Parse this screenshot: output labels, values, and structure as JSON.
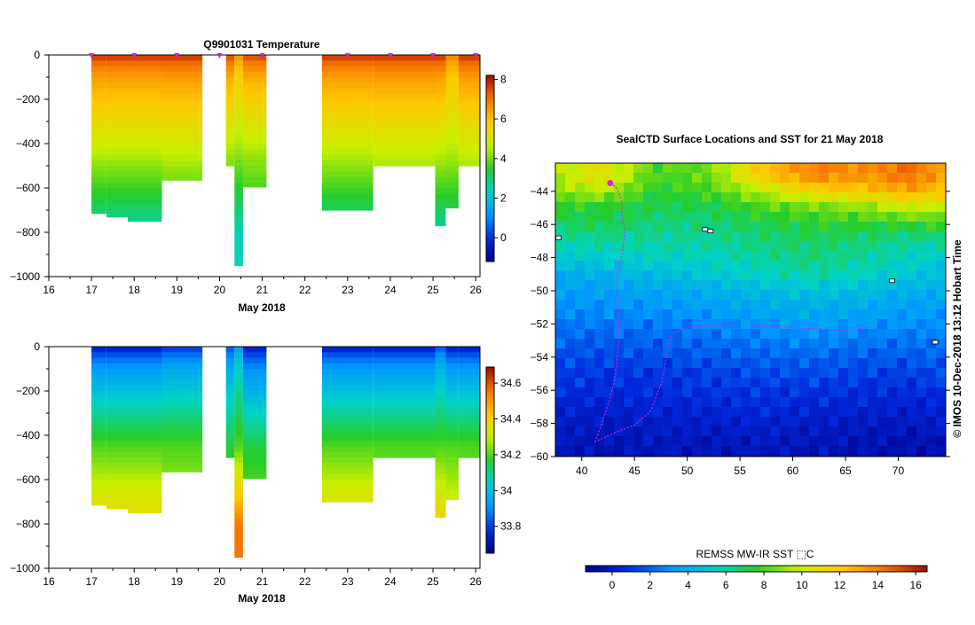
{
  "chart_data": [
    {
      "type": "heatmap",
      "title": "Q9901031  Temperature",
      "xlabel": "May 2018",
      "xlim": [
        16,
        26.1
      ],
      "ylim": [
        -1000,
        0
      ],
      "xticks": [
        16,
        17,
        18,
        19,
        20,
        21,
        22,
        23,
        24,
        25,
        26
      ],
      "yticks": [
        0,
        -200,
        -400,
        -600,
        -800,
        -1000
      ],
      "colorbar": {
        "min": -1.2,
        "max": 8.2,
        "ticks": [
          0,
          2,
          4,
          6,
          8
        ]
      },
      "surface_markers": [
        17.0,
        18.0,
        19.0,
        20.0,
        21.0,
        23.0,
        24.0,
        25.0,
        26.0
      ],
      "profiles": [
        {
          "x0": 17.0,
          "x1": 17.35,
          "depth": -715,
          "top": 8.0,
          "mid": 4.5,
          "bot": 2.5
        },
        {
          "x0": 17.35,
          "x1": 17.85,
          "depth": -730,
          "top": 8.0,
          "mid": 4.5,
          "bot": 2.5
        },
        {
          "x0": 17.85,
          "x1": 18.65,
          "depth": -750,
          "top": 8.0,
          "mid": 4.5,
          "bot": 2.5
        },
        {
          "x0": 18.65,
          "x1": 19.6,
          "depth": -565,
          "top": 8.0,
          "mid": 4.6,
          "bot": 2.9
        },
        {
          "x0": 20.15,
          "x1": 20.35,
          "depth": -500,
          "top": 7.8,
          "mid": 4.3,
          "bot": 3.0
        },
        {
          "x0": 20.35,
          "x1": 20.55,
          "depth": -950,
          "top": 6.8,
          "mid": 4.2,
          "bot": 2.5
        },
        {
          "x0": 20.55,
          "x1": 21.1,
          "depth": -595,
          "top": 7.8,
          "mid": 4.3,
          "bot": 3.0
        },
        {
          "x0": 22.4,
          "x1": 23.6,
          "depth": -700,
          "top": 8.0,
          "mid": 4.5,
          "bot": 2.6
        },
        {
          "x0": 23.6,
          "x1": 24.25,
          "depth": -500,
          "top": 8.0,
          "mid": 4.6,
          "bot": 3.1
        },
        {
          "x0": 24.25,
          "x1": 25.05,
          "depth": -500,
          "top": 8.0,
          "mid": 4.6,
          "bot": 3.1
        },
        {
          "x0": 25.05,
          "x1": 25.3,
          "depth": -770,
          "top": 8.0,
          "mid": 4.5,
          "bot": 2.6
        },
        {
          "x0": 25.3,
          "x1": 25.6,
          "depth": -690,
          "top": 7.0,
          "mid": 4.4,
          "bot": 2.7
        },
        {
          "x0": 25.6,
          "x1": 26.1,
          "depth": -500,
          "top": 8.0,
          "mid": 4.6,
          "bot": 3.1
        }
      ]
    },
    {
      "type": "heatmap",
      "title": "",
      "xlabel": "May 2018",
      "xlim": [
        16,
        26.1
      ],
      "ylim": [
        -1000,
        0
      ],
      "xticks": [
        16,
        17,
        18,
        19,
        20,
        21,
        22,
        23,
        24,
        25,
        26
      ],
      "yticks": [
        0,
        -200,
        -400,
        -600,
        -800,
        -1000
      ],
      "colorbar": {
        "min": 33.65,
        "max": 34.69,
        "ticks": [
          33.8,
          34,
          34.2,
          34.4,
          34.6
        ]
      },
      "profiles": [
        {
          "x0": 17.0,
          "x1": 17.35,
          "depth": -715,
          "top": 33.7,
          "mid": 34.2,
          "bot": 34.4
        },
        {
          "x0": 17.35,
          "x1": 17.85,
          "depth": -730,
          "top": 33.7,
          "mid": 34.2,
          "bot": 34.4
        },
        {
          "x0": 17.85,
          "x1": 18.65,
          "depth": -750,
          "top": 33.7,
          "mid": 34.2,
          "bot": 34.4
        },
        {
          "x0": 18.65,
          "x1": 19.6,
          "depth": -565,
          "top": 33.75,
          "mid": 34.2,
          "bot": 34.3
        },
        {
          "x0": 20.15,
          "x1": 20.35,
          "depth": -500,
          "top": 33.8,
          "mid": 34.15,
          "bot": 34.25
        },
        {
          "x0": 20.35,
          "x1": 20.55,
          "depth": -950,
          "top": 33.9,
          "mid": 34.2,
          "bot": 34.55
        },
        {
          "x0": 20.55,
          "x1": 21.1,
          "depth": -595,
          "top": 33.7,
          "mid": 34.15,
          "bot": 34.25
        },
        {
          "x0": 22.4,
          "x1": 23.6,
          "depth": -700,
          "top": 33.7,
          "mid": 34.2,
          "bot": 34.4
        },
        {
          "x0": 23.6,
          "x1": 24.25,
          "depth": -500,
          "top": 33.7,
          "mid": 34.2,
          "bot": 34.25
        },
        {
          "x0": 24.25,
          "x1": 25.05,
          "depth": -500,
          "top": 33.7,
          "mid": 34.2,
          "bot": 34.25
        },
        {
          "x0": 25.05,
          "x1": 25.3,
          "depth": -770,
          "top": 33.8,
          "mid": 34.2,
          "bot": 34.4
        },
        {
          "x0": 25.3,
          "x1": 25.6,
          "depth": -690,
          "top": 33.7,
          "mid": 34.2,
          "bot": 34.35
        },
        {
          "x0": 25.6,
          "x1": 26.1,
          "depth": -500,
          "top": 33.7,
          "mid": 34.2,
          "bot": 34.25
        }
      ]
    },
    {
      "type": "heatmap",
      "title": "SealCTD Surface Locations and SST for 21 May 2018",
      "xlim": [
        37.5,
        74.5
      ],
      "ylim": [
        -60,
        -42.3
      ],
      "xticks": [
        40,
        45,
        50,
        55,
        60,
        65,
        70
      ],
      "yticks": [
        -44,
        -46,
        -48,
        -50,
        -52,
        -54,
        -56,
        -58,
        -60
      ],
      "side_text": "© IMOS 10-Dec-2018 13:12 Hobart Time",
      "sst_grid": {
        "lat": [
          -43,
          -44,
          -45,
          -46,
          -47,
          -48,
          -49,
          -50,
          -51,
          -52,
          -53,
          -54,
          -55,
          -56,
          -57,
          -58,
          -59,
          -60
        ],
        "lon": [
          37.5,
          42,
          47,
          52,
          57,
          62,
          67,
          71,
          74.5
        ],
        "values": [
          [
            9.5,
            11,
            8,
            8.5,
            12,
            14,
            13.5,
            14.5,
            13
          ],
          [
            9,
            9.5,
            7.5,
            8,
            9.5,
            11.5,
            12,
            13,
            12
          ],
          [
            7.5,
            7.5,
            7,
            7,
            8,
            8.5,
            9,
            10,
            9.5
          ],
          [
            6.8,
            7,
            6.5,
            6.5,
            7,
            7.5,
            7.5,
            7.5,
            8
          ],
          [
            5.8,
            6,
            6,
            6,
            6.5,
            6.8,
            6.5,
            6,
            6
          ],
          [
            5,
            5.2,
            5.5,
            5.5,
            6,
            6.5,
            6,
            5.5,
            5
          ],
          [
            4,
            4.2,
            4.5,
            5,
            5.5,
            6,
            5.5,
            5,
            4.5
          ],
          [
            3.5,
            3.5,
            3.8,
            4,
            4.5,
            4.8,
            4.5,
            4,
            4
          ],
          [
            3,
            3,
            3.2,
            3.5,
            3.8,
            4,
            3.8,
            3.5,
            3.5
          ],
          [
            2.5,
            2.5,
            2.5,
            2.8,
            3.2,
            3.5,
            3.2,
            3,
            3
          ],
          [
            2,
            1.8,
            2,
            2.2,
            2.5,
            2.8,
            2.5,
            2.3,
            2.5
          ],
          [
            1.5,
            1.5,
            1.5,
            1.8,
            2,
            2,
            1.8,
            1.8,
            2
          ],
          [
            1.2,
            1,
            1,
            1.2,
            1.5,
            1.5,
            1.3,
            1.2,
            1.5
          ],
          [
            0.8,
            0.8,
            0.8,
            1,
            1,
            1,
            0.8,
            0.8,
            1
          ],
          [
            0.5,
            0.3,
            0.5,
            0.5,
            0.8,
            0.5,
            0.5,
            0.3,
            0.5
          ],
          [
            0.2,
            0,
            0.2,
            0.2,
            0.3,
            0.2,
            0,
            0,
            0.2
          ],
          [
            0,
            -0.3,
            0,
            -0.2,
            0,
            -0.2,
            -0.3,
            -0.5,
            -0.3
          ],
          [
            -0.3,
            -0.5,
            -0.3,
            -0.5,
            -0.3,
            -0.5,
            -0.5,
            -0.6,
            -0.5
          ]
        ]
      },
      "track": [
        [
          42.7,
          -43.5
        ],
        [
          43.3,
          -43.8
        ],
        [
          43.8,
          -44.6
        ],
        [
          43.8,
          -45.5
        ],
        [
          44.1,
          -46.4
        ],
        [
          43.9,
          -47.5
        ],
        [
          43.6,
          -48.5
        ],
        [
          43.3,
          -49.5
        ],
        [
          43.5,
          -51
        ],
        [
          43.5,
          -53
        ],
        [
          43.2,
          -55
        ],
        [
          42.7,
          -56.5
        ],
        [
          42,
          -57.8
        ],
        [
          41.3,
          -59.1
        ],
        [
          43,
          -58.6
        ],
        [
          45,
          -58.1
        ],
        [
          46.5,
          -57.3
        ],
        [
          47.6,
          -55.5
        ],
        [
          48,
          -54
        ],
        [
          48.5,
          -52.6
        ],
        [
          50,
          -52.2
        ],
        [
          55,
          -52.1
        ],
        [
          60,
          -52.2
        ],
        [
          65,
          -52.4
        ],
        [
          68.2,
          -52.1
        ]
      ],
      "track_color": "#e020e0",
      "islands": [
        [
          37.8,
          -46.8
        ],
        [
          51.7,
          -46.3
        ],
        [
          52.2,
          -46.4
        ],
        [
          69.4,
          -49.4
        ],
        [
          73.5,
          -53.1
        ]
      ]
    },
    {
      "type": "heatmap",
      "title": "REMSS MW-IR SST ⬚C",
      "xlim": [
        -1.4,
        16.6
      ],
      "xticks": [
        0,
        2,
        4,
        6,
        8,
        10,
        12,
        14,
        16
      ]
    }
  ]
}
